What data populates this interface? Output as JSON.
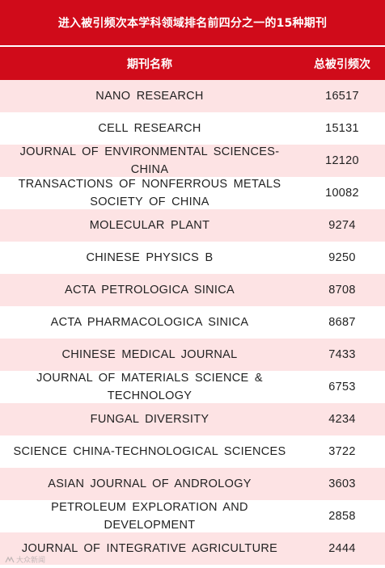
{
  "title": "进入被引频次本学科领域排名前四分之一的15种期刊",
  "columns": {
    "name": "期刊名称",
    "count": "总被引频次"
  },
  "rows": [
    {
      "name": "NANO RESEARCH",
      "count": "16517"
    },
    {
      "name": "CELL RESEARCH",
      "count": "15131"
    },
    {
      "name": "JOURNAL OF ENVIRONMENTAL SCIENCES-CHINA",
      "count": "12120"
    },
    {
      "name": "TRANSACTIONS OF NONFERROUS METALS SOCIETY OF CHINA",
      "count": "10082"
    },
    {
      "name": "MOLECULAR PLANT",
      "count": "9274"
    },
    {
      "name": "CHINESE PHYSICS B",
      "count": "9250"
    },
    {
      "name": "ACTA PETROLOGICA SINICA",
      "count": "8708"
    },
    {
      "name": "ACTA PHARMACOLOGICA SINICA",
      "count": "8687"
    },
    {
      "name": "CHINESE MEDICAL JOURNAL",
      "count": "7433"
    },
    {
      "name": "JOURNAL OF MATERIALS SCIENCE & TECHNOLOGY",
      "count": "6753"
    },
    {
      "name": "FUNGAL DIVERSITY",
      "count": "4234"
    },
    {
      "name": "SCIENCE CHINA-TECHNOLOGICAL SCIENCES",
      "count": "3722"
    },
    {
      "name": "ASIAN JOURNAL OF ANDROLOGY",
      "count": "3603"
    },
    {
      "name": "PETROLEUM EXPLORATION AND DEVELOPMENT",
      "count": "2858"
    },
    {
      "name": "JOURNAL OF INTEGRATIVE AGRICULTURE",
      "count": "2444"
    }
  ],
  "watermark": "大众新闻",
  "colors": {
    "header_red": "#d00b1a",
    "alt_row_pink": "#fde3e4",
    "text": "#222222"
  }
}
